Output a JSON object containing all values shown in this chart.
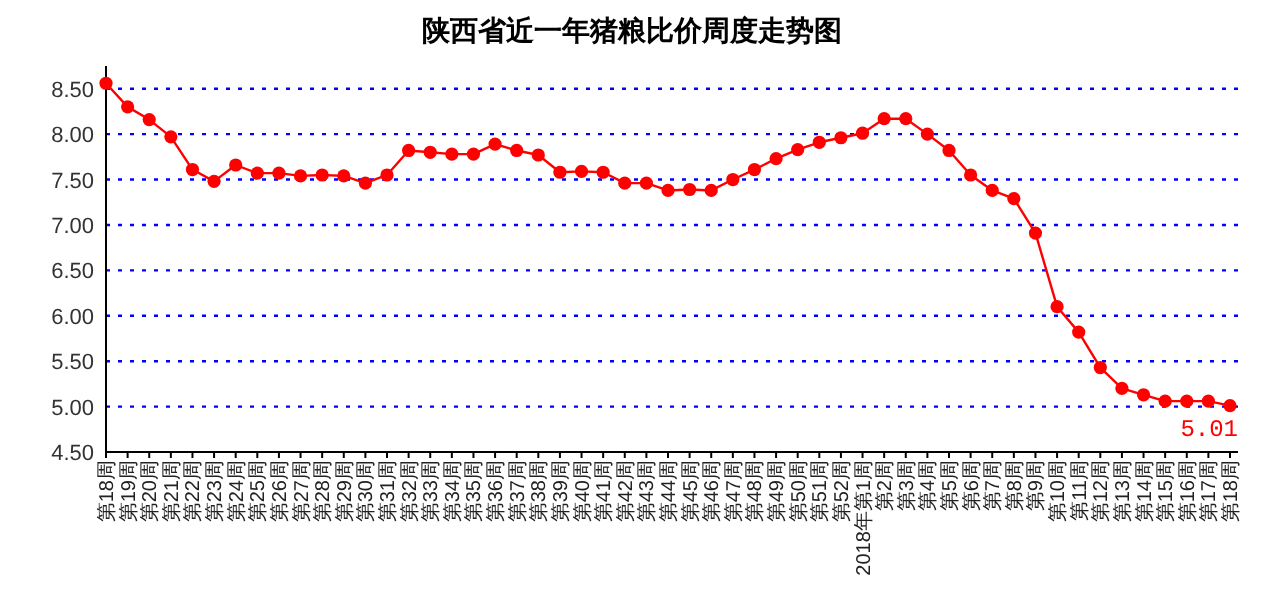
{
  "chart_data": {
    "type": "line",
    "title": "陕西省近一年猪粮比价周度走势图",
    "categories": [
      "第18周",
      "第19周",
      "第20周",
      "第21周",
      "第22周",
      "第23周",
      "第24周",
      "第25周",
      "第26周",
      "第27周",
      "第28周",
      "第29周",
      "第30周",
      "第31周",
      "第32周",
      "第33周",
      "第34周",
      "第35周",
      "第36周",
      "第37周",
      "第38周",
      "第39周",
      "第40周",
      "第41周",
      "第42周",
      "第43周",
      "第44周",
      "第45周",
      "第46周",
      "第47周",
      "第48周",
      "第49周",
      "第50周",
      "第51周",
      "第52周",
      "2018年第1周",
      "第2周",
      "第3周",
      "第4周",
      "第5周",
      "第6周",
      "第7周",
      "第8周",
      "第9周",
      "第10周",
      "第11周",
      "第12周",
      "第13周",
      "第14周",
      "第15周",
      "第16周",
      "第17周",
      "第18周"
    ],
    "series": [
      {
        "color": "#ff0000",
        "values": [
          8.56,
          8.3,
          8.16,
          7.97,
          7.61,
          7.48,
          7.66,
          7.57,
          7.57,
          7.54,
          7.55,
          7.54,
          7.46,
          7.55,
          7.82,
          7.8,
          7.78,
          7.78,
          7.89,
          7.82,
          7.77,
          7.58,
          7.59,
          7.58,
          7.46,
          7.46,
          7.38,
          7.39,
          7.38,
          7.5,
          7.61,
          7.73,
          7.83,
          7.91,
          7.96,
          8.01,
          8.17,
          8.17,
          8.0,
          7.82,
          7.55,
          7.38,
          7.29,
          6.91,
          6.1,
          5.82,
          5.43,
          5.2,
          5.13,
          5.06,
          5.06,
          5.06,
          5.01
        ],
        "value_labels": [
          null,
          null,
          null,
          null,
          null,
          null,
          null,
          null,
          null,
          null,
          null,
          null,
          null,
          null,
          null,
          null,
          null,
          null,
          null,
          null,
          null,
          null,
          null,
          null,
          null,
          null,
          null,
          null,
          null,
          null,
          null,
          null,
          null,
          null,
          null,
          null,
          null,
          null,
          null,
          null,
          null,
          null,
          null,
          null,
          null,
          null,
          null,
          null,
          null,
          null,
          null,
          null,
          "5.01"
        ]
      }
    ],
    "ylim": [
      4.5,
      8.75
    ],
    "yticks": [
      {
        "value": 4.5,
        "label": "4.50"
      },
      {
        "value": 5,
        "label": "5.00"
      },
      {
        "value": 5.5,
        "label": "5.50"
      },
      {
        "value": 6,
        "label": "6.00"
      },
      {
        "value": 6.5,
        "label": "6.50"
      },
      {
        "value": 7,
        "label": "7.00"
      },
      {
        "value": 7.5,
        "label": "7.50"
      },
      {
        "value": 8,
        "label": "8.00"
      },
      {
        "value": 8.5,
        "label": "8.50"
      }
    ],
    "grid": "y",
    "marker": "circle",
    "line_style": "solid"
  }
}
